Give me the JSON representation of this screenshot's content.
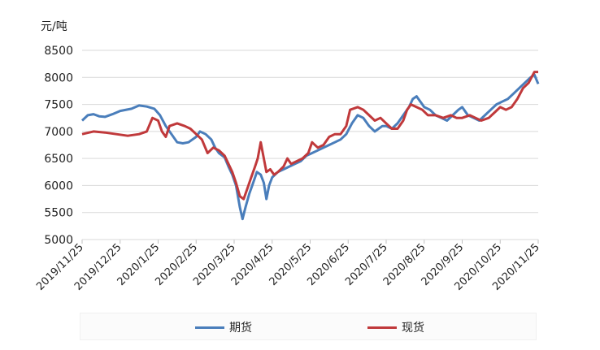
{
  "chart_data": {
    "type": "line",
    "ylabel": "元/吨",
    "ylim": [
      5000,
      8500
    ],
    "yticks": [
      5000,
      5500,
      6000,
      6500,
      7000,
      7500,
      8000,
      8500
    ],
    "x_ticks": [
      "2019/11/25",
      "2019/12/25",
      "2020/1/25",
      "2020/2/25",
      "2020/3/25",
      "2020/4/25",
      "2020/5/25",
      "2020/6/25",
      "2020/7/25",
      "2020/8/25",
      "2020/9/25",
      "2020/10/25",
      "2020/11/25"
    ],
    "grid": true,
    "legend_position": "bottom",
    "series": [
      {
        "name": "期货",
        "color": "#4a7ebb",
        "points": [
          [
            0,
            7200
          ],
          [
            0.15,
            7300
          ],
          [
            0.3,
            7320
          ],
          [
            0.45,
            7280
          ],
          [
            0.6,
            7270
          ],
          [
            0.8,
            7320
          ],
          [
            1.0,
            7380
          ],
          [
            1.3,
            7420
          ],
          [
            1.5,
            7480
          ],
          [
            1.7,
            7460
          ],
          [
            1.9,
            7420
          ],
          [
            2.05,
            7300
          ],
          [
            2.2,
            7100
          ],
          [
            2.35,
            6950
          ],
          [
            2.5,
            6800
          ],
          [
            2.65,
            6780
          ],
          [
            2.8,
            6800
          ],
          [
            3.0,
            6900
          ],
          [
            3.1,
            7000
          ],
          [
            3.25,
            6950
          ],
          [
            3.4,
            6850
          ],
          [
            3.5,
            6700
          ],
          [
            3.6,
            6600
          ],
          [
            3.75,
            6520
          ],
          [
            3.85,
            6350
          ],
          [
            3.95,
            6200
          ],
          [
            4.05,
            6000
          ],
          [
            4.15,
            5600
          ],
          [
            4.22,
            5380
          ],
          [
            4.3,
            5600
          ],
          [
            4.4,
            5850
          ],
          [
            4.5,
            6050
          ],
          [
            4.6,
            6250
          ],
          [
            4.7,
            6200
          ],
          [
            4.78,
            6050
          ],
          [
            4.85,
            5750
          ],
          [
            4.92,
            6000
          ],
          [
            5.0,
            6150
          ],
          [
            5.15,
            6250
          ],
          [
            5.3,
            6300
          ],
          [
            5.45,
            6350
          ],
          [
            5.6,
            6400
          ],
          [
            5.75,
            6450
          ],
          [
            5.9,
            6550
          ],
          [
            6.05,
            6600
          ],
          [
            6.2,
            6650
          ],
          [
            6.35,
            6700
          ],
          [
            6.5,
            6750
          ],
          [
            6.65,
            6800
          ],
          [
            6.8,
            6850
          ],
          [
            6.95,
            6950
          ],
          [
            7.1,
            7150
          ],
          [
            7.25,
            7300
          ],
          [
            7.4,
            7250
          ],
          [
            7.55,
            7100
          ],
          [
            7.7,
            7000
          ],
          [
            7.8,
            7050
          ],
          [
            7.9,
            7100
          ],
          [
            8.0,
            7100
          ],
          [
            8.15,
            7050
          ],
          [
            8.3,
            7150
          ],
          [
            8.45,
            7300
          ],
          [
            8.6,
            7450
          ],
          [
            8.7,
            7600
          ],
          [
            8.8,
            7650
          ],
          [
            8.9,
            7550
          ],
          [
            9.0,
            7450
          ],
          [
            9.15,
            7400
          ],
          [
            9.3,
            7300
          ],
          [
            9.45,
            7250
          ],
          [
            9.6,
            7200
          ],
          [
            9.75,
            7300
          ],
          [
            9.9,
            7400
          ],
          [
            10.0,
            7450
          ],
          [
            10.15,
            7300
          ],
          [
            10.3,
            7250
          ],
          [
            10.45,
            7200
          ],
          [
            10.6,
            7300
          ],
          [
            10.75,
            7400
          ],
          [
            10.9,
            7500
          ],
          [
            11.05,
            7550
          ],
          [
            11.2,
            7600
          ],
          [
            11.35,
            7700
          ],
          [
            11.5,
            7800
          ],
          [
            11.65,
            7900
          ],
          [
            11.8,
            8000
          ],
          [
            11.9,
            8050
          ],
          [
            12.0,
            7880
          ]
        ]
      },
      {
        "name": "现货",
        "color": "#c0393b",
        "points": [
          [
            0,
            6950
          ],
          [
            0.3,
            7000
          ],
          [
            0.6,
            6980
          ],
          [
            0.9,
            6950
          ],
          [
            1.2,
            6920
          ],
          [
            1.5,
            6950
          ],
          [
            1.7,
            7000
          ],
          [
            1.85,
            7250
          ],
          [
            2.0,
            7200
          ],
          [
            2.1,
            7000
          ],
          [
            2.2,
            6900
          ],
          [
            2.3,
            7100
          ],
          [
            2.5,
            7150
          ],
          [
            2.7,
            7100
          ],
          [
            2.85,
            7050
          ],
          [
            3.0,
            6950
          ],
          [
            3.15,
            6850
          ],
          [
            3.3,
            6600
          ],
          [
            3.45,
            6700
          ],
          [
            3.6,
            6650
          ],
          [
            3.75,
            6550
          ],
          [
            3.85,
            6400
          ],
          [
            3.95,
            6250
          ],
          [
            4.05,
            6050
          ],
          [
            4.15,
            5800
          ],
          [
            4.25,
            5750
          ],
          [
            4.35,
            5950
          ],
          [
            4.45,
            6150
          ],
          [
            4.55,
            6350
          ],
          [
            4.62,
            6500
          ],
          [
            4.7,
            6800
          ],
          [
            4.78,
            6500
          ],
          [
            4.85,
            6250
          ],
          [
            4.95,
            6300
          ],
          [
            5.05,
            6200
          ],
          [
            5.15,
            6250
          ],
          [
            5.3,
            6350
          ],
          [
            5.4,
            6500
          ],
          [
            5.5,
            6400
          ],
          [
            5.65,
            6450
          ],
          [
            5.8,
            6500
          ],
          [
            5.95,
            6600
          ],
          [
            6.05,
            6800
          ],
          [
            6.2,
            6700
          ],
          [
            6.35,
            6750
          ],
          [
            6.5,
            6900
          ],
          [
            6.65,
            6950
          ],
          [
            6.8,
            6950
          ],
          [
            6.95,
            7100
          ],
          [
            7.05,
            7400
          ],
          [
            7.25,
            7450
          ],
          [
            7.4,
            7400
          ],
          [
            7.55,
            7300
          ],
          [
            7.7,
            7200
          ],
          [
            7.85,
            7250
          ],
          [
            8.0,
            7150
          ],
          [
            8.15,
            7050
          ],
          [
            8.3,
            7050
          ],
          [
            8.45,
            7200
          ],
          [
            8.55,
            7400
          ],
          [
            8.65,
            7500
          ],
          [
            8.8,
            7450
          ],
          [
            8.95,
            7400
          ],
          [
            9.1,
            7300
          ],
          [
            9.3,
            7300
          ],
          [
            9.5,
            7250
          ],
          [
            9.7,
            7300
          ],
          [
            9.85,
            7250
          ],
          [
            10.0,
            7250
          ],
          [
            10.2,
            7300
          ],
          [
            10.35,
            7250
          ],
          [
            10.5,
            7200
          ],
          [
            10.7,
            7250
          ],
          [
            10.85,
            7350
          ],
          [
            11.0,
            7450
          ],
          [
            11.15,
            7400
          ],
          [
            11.3,
            7450
          ],
          [
            11.45,
            7600
          ],
          [
            11.6,
            7800
          ],
          [
            11.75,
            7900
          ],
          [
            11.9,
            8100
          ],
          [
            12.0,
            8100
          ]
        ]
      }
    ]
  }
}
